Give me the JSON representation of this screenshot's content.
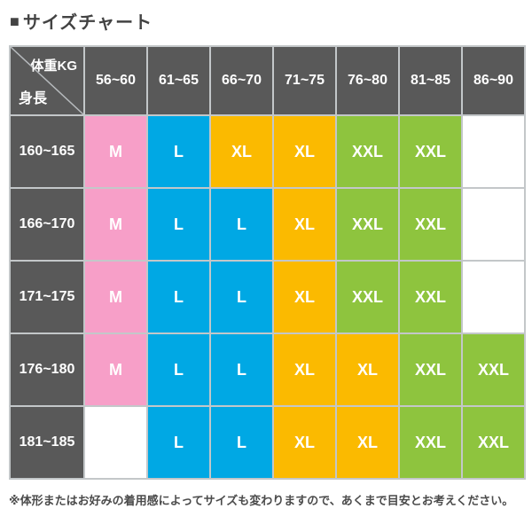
{
  "title": {
    "bullet": "■",
    "text": "サイズチャート"
  },
  "table": {
    "corner_top": "体重KG",
    "corner_bottom": "身長"
  },
  "chart_data": {
    "type": "table",
    "title": "サイズチャート",
    "column_axis_label": "体重KG",
    "row_axis_label": "身長",
    "columns": [
      "56~60",
      "61~65",
      "66~70",
      "71~75",
      "76~80",
      "81~85",
      "86~90"
    ],
    "rows": [
      "160~165",
      "166~170",
      "171~175",
      "176~180",
      "181~185"
    ],
    "cells": [
      [
        "M",
        "L",
        "XL",
        "XL",
        "XXL",
        "XXL",
        ""
      ],
      [
        "M",
        "L",
        "L",
        "XL",
        "XXL",
        "XXL",
        ""
      ],
      [
        "M",
        "L",
        "L",
        "XL",
        "XXL",
        "XXL",
        ""
      ],
      [
        "M",
        "L",
        "L",
        "XL",
        "XL",
        "XXL",
        "XXL"
      ],
      [
        "",
        "L",
        "L",
        "XL",
        "XL",
        "XXL",
        "XXL"
      ]
    ],
    "size_color_legend": {
      "M": "pink",
      "L": "blue",
      "XL": "yellow",
      "XXL": "green",
      "blank": "white"
    }
  },
  "note": "※体形またはお好みの着用感によってサイズも変わりますので、あくまで目安とお考えください。",
  "colors": {
    "size_M": "#F79FC8",
    "size_L": "#00A8E4",
    "size_XL": "#FBBA00",
    "size_XXL": "#8EC43E",
    "empty_cell": "#FFFFFF",
    "header_bg": "#595959",
    "header_text": "#FFFFFF",
    "grid_line": "#C3C7C9",
    "diagonal_line": "#B6BABD",
    "title_text": "#434343",
    "note_text": "#4B4B4B"
  }
}
